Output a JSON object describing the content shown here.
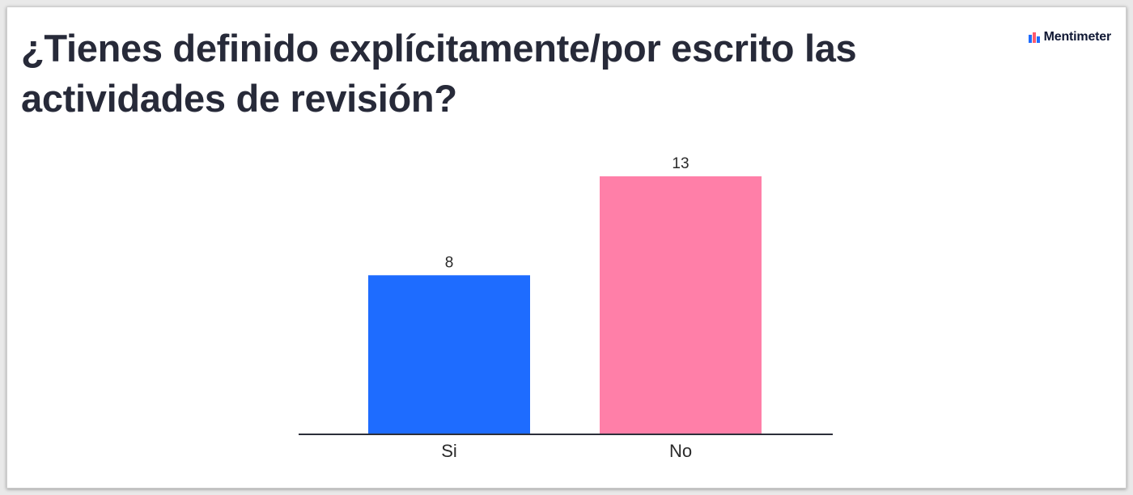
{
  "slide": {
    "title": "¿Tienes definido explícitamente/por escrito las actividades de revisión?",
    "brand": "Mentimeter"
  },
  "chart_data": {
    "type": "bar",
    "categories": [
      "Si",
      "No"
    ],
    "values": [
      8,
      13
    ],
    "colors": [
      "#1e6cff",
      "#ff7fa8"
    ],
    "data_labels": [
      "8",
      "13"
    ],
    "ylim": [
      0,
      13
    ],
    "grid": false,
    "legend": "none"
  }
}
